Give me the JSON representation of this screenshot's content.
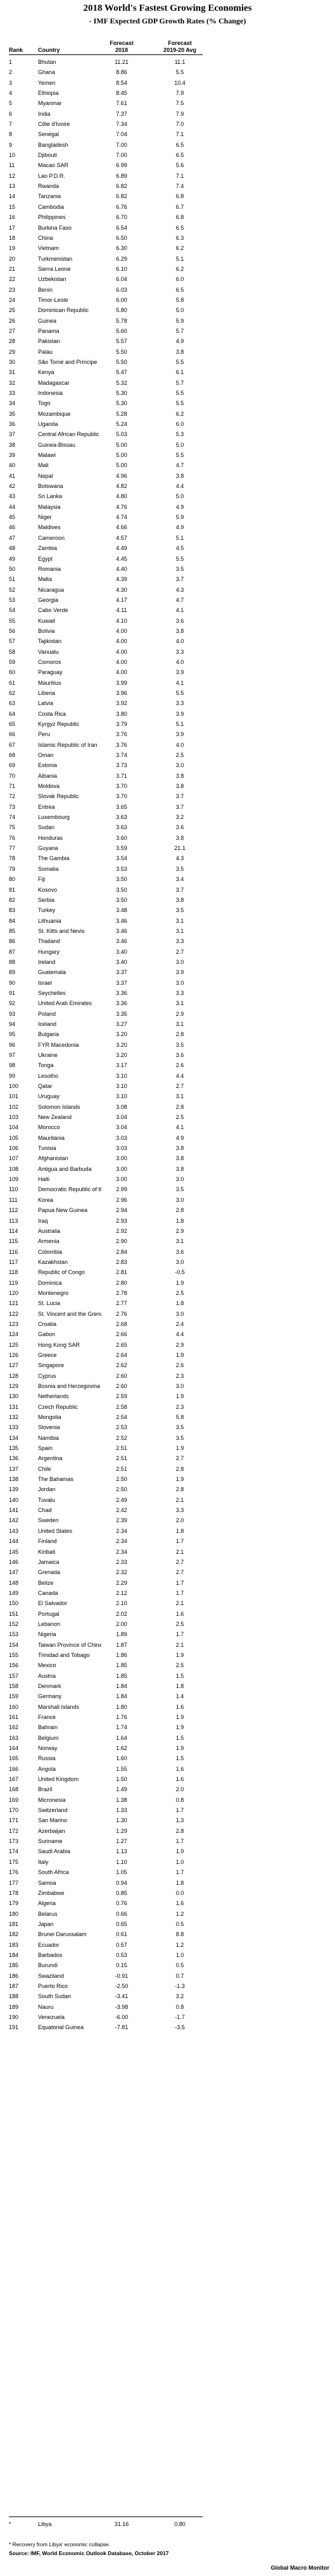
{
  "title": "2018 World's Fastest Growing Economies",
  "subtitle": "- IMF Expected GDP Growth Rates (% Change)",
  "headers": {
    "rank": "Rank",
    "country": "Country",
    "forecast_2018": "Forecast\n2018",
    "forecast_2019_20": "Forecast\n2019-20 Avg"
  },
  "rows": [
    [
      "1",
      "Bhutan",
      "11.21",
      "11.1"
    ],
    [
      "2",
      "Ghana",
      "8.86",
      "5.5"
    ],
    [
      "3",
      "Yemen",
      "8.54",
      "10.4"
    ],
    [
      "4",
      "Ethiopia",
      "8.45",
      "7.9"
    ],
    [
      "5",
      "Myanmar",
      "7.61",
      "7.5"
    ],
    [
      "6",
      "India",
      "7.37",
      "7.9"
    ],
    [
      "7",
      "Côte d'Ivoire",
      "7.34",
      "7.0"
    ],
    [
      "8",
      "Senegal",
      "7.04",
      "7.1"
    ],
    [
      "9",
      "Bangladesh",
      "7.00",
      "6.5"
    ],
    [
      "10",
      "Djibouti",
      "7.00",
      "6.5"
    ],
    [
      "11",
      "Macao SAR",
      "6.99",
      "5.6"
    ],
    [
      "12",
      "Lao P.D.R.",
      "6.89",
      "7.1"
    ],
    [
      "13",
      "Rwanda",
      "6.82",
      "7.4"
    ],
    [
      "14",
      "Tanzania",
      "6.82",
      "6.8"
    ],
    [
      "15",
      "Cambodia",
      "6.76",
      "6.7"
    ],
    [
      "16",
      "Philippines",
      "6.70",
      "6.8"
    ],
    [
      "17",
      "Burkina Faso",
      "6.54",
      "6.5"
    ],
    [
      "18",
      "China",
      "6.50",
      "6.3"
    ],
    [
      "19",
      "Vietnam",
      "6.30",
      "6.2"
    ],
    [
      "20",
      "Turkmenistan",
      "6.29",
      "5.1"
    ],
    [
      "21",
      "Sierra Leone",
      "6.10",
      "6.2"
    ],
    [
      "22",
      "Uzbekistan",
      "6.04",
      "6.0"
    ],
    [
      "23",
      "Benin",
      "6.03",
      "6.5"
    ],
    [
      "24",
      "Timor-Leste",
      "6.00",
      "5.8"
    ],
    [
      "25",
      "Dominican Republic",
      "5.80",
      "5.0"
    ],
    [
      "26",
      "Guinea",
      "5.78",
      "5.9"
    ],
    [
      "27",
      "Panama",
      "5.60",
      "5.7"
    ],
    [
      "28",
      "Pakistan",
      "5.57",
      "4.9"
    ],
    [
      "29",
      "Palau",
      "5.50",
      "3.8"
    ],
    [
      "30",
      "São Tomé and Príncipe",
      "5.50",
      "5.5"
    ],
    [
      "31",
      "Kenya",
      "5.47",
      "6.1"
    ],
    [
      "32",
      "Madagascar",
      "5.32",
      "5.7"
    ],
    [
      "33",
      "Indonesia",
      "5.30",
      "5.5"
    ],
    [
      "34",
      "Togo",
      "5.30",
      "5.5"
    ],
    [
      "35",
      "Mozambique",
      "5.28",
      "6.2"
    ],
    [
      "36",
      "Uganda",
      "5.24",
      "6.0"
    ],
    [
      "37",
      "Central African Republic",
      "5.03",
      "5.3"
    ],
    [
      "38",
      "Guinea-Bissau",
      "5.00",
      "5.0"
    ],
    [
      "39",
      "Malawi",
      "5.00",
      "5.5"
    ],
    [
      "40",
      "Mali",
      "5.00",
      "4.7"
    ],
    [
      "41",
      "Nepal",
      "4.96",
      "3.8"
    ],
    [
      "42",
      "Botswana",
      "4.82",
      "4.4"
    ],
    [
      "43",
      "Sri Lanka",
      "4.80",
      "5.0"
    ],
    [
      "44",
      "Malaysia",
      "4.76",
      "4.9"
    ],
    [
      "45",
      "Niger",
      "4.74",
      "5.9"
    ],
    [
      "46",
      "Maldives",
      "4.66",
      "4.9"
    ],
    [
      "47",
      "Cameroon",
      "4.57",
      "5.1"
    ],
    [
      "48",
      "Zambia",
      "4.49",
      "4.5"
    ],
    [
      "49",
      "Egypt",
      "4.45",
      "5.5"
    ],
    [
      "50",
      "Romania",
      "4.40",
      "3.5"
    ],
    [
      "51",
      "Malta",
      "4.39",
      "3.7"
    ],
    [
      "52",
      "Nicaragua",
      "4.30",
      "4.3"
    ],
    [
      "53",
      "Georgia",
      "4.17",
      "4.7"
    ],
    [
      "54",
      "Cabo Verde",
      "4.11",
      "4.1"
    ],
    [
      "55",
      "Kuwait",
      "4.10",
      "3.6"
    ],
    [
      "56",
      "Bolivia",
      "4.00",
      "3.8"
    ],
    [
      "57",
      "Tajikistan",
      "4.00",
      "4.0"
    ],
    [
      "58",
      "Vanuatu",
      "4.00",
      "3.3"
    ],
    [
      "59",
      "Comoros",
      "4.00",
      "4.0"
    ],
    [
      "60",
      "Paraguay",
      "4.00",
      "3.9"
    ],
    [
      "61",
      "Mauritius",
      "3.99",
      "4.1"
    ],
    [
      "62",
      "Liberia",
      "3.96",
      "5.5"
    ],
    [
      "63",
      "Latvia",
      "3.92",
      "3.3"
    ],
    [
      "64",
      "Costa Rica",
      "3.80",
      "3.9"
    ],
    [
      "65",
      "Kyrgyz Republic",
      "3.79",
      "5.1"
    ],
    [
      "66",
      "Peru",
      "3.76",
      "3.9"
    ],
    [
      "67",
      "Islamic Republic of Iran",
      "3.76",
      "4.0"
    ],
    [
      "68",
      "Oman",
      "3.74",
      "2.5"
    ],
    [
      "69",
      "Estonia",
      "3.73",
      "3.0"
    ],
    [
      "70",
      "Albania",
      "3.71",
      "3.8"
    ],
    [
      "71",
      "Moldova",
      "3.70",
      "3.8"
    ],
    [
      "72",
      "Slovak Republic",
      "3.70",
      "3.7"
    ],
    [
      "73",
      "Eritrea",
      "3.65",
      "3.7"
    ],
    [
      "74",
      "Luxembourg",
      "3.63",
      "3.2"
    ],
    [
      "75",
      "Sudan",
      "3.63",
      "3.6"
    ],
    [
      "76",
      "Honduras",
      "3.60",
      "3.8"
    ],
    [
      "77",
      "Guyana",
      "3.59",
      "21.1"
    ],
    [
      "78",
      "The Gambia",
      "3.54",
      "4.3"
    ],
    [
      "79",
      "Somalia",
      "3.53",
      "3.5"
    ],
    [
      "80",
      "Fiji",
      "3.50",
      "3.4"
    ],
    [
      "81",
      "Kosovo",
      "3.50",
      "3.7"
    ],
    [
      "82",
      "Serbia",
      "3.50",
      "3.8"
    ],
    [
      "83",
      "Turkey",
      "3.48",
      "3.5"
    ],
    [
      "84",
      "Lithuania",
      "3.46",
      "3.1"
    ],
    [
      "85",
      "St. Kitts and Nevis",
      "3.46",
      "3.1"
    ],
    [
      "86",
      "Thailand",
      "3.46",
      "3.3"
    ],
    [
      "87",
      "Hungary",
      "3.40",
      "2.7"
    ],
    [
      "88",
      "Ireland",
      "3.40",
      "3.0"
    ],
    [
      "89",
      "Guatemala",
      "3.37",
      "3.9"
    ],
    [
      "90",
      "Israel",
      "3.37",
      "3.0"
    ],
    [
      "91",
      "Seychelles",
      "3.36",
      "3.3"
    ],
    [
      "92",
      "United Arab Emirates",
      "3.36",
      "3.1"
    ],
    [
      "93",
      "Poland",
      "3.35",
      "2.9"
    ],
    [
      "94",
      "Iceland",
      "3.27",
      "3.1"
    ],
    [
      "95",
      "Bulgaria",
      "3.20",
      "2.8"
    ],
    [
      "96",
      "FYR Macedonia",
      "3.20",
      "3.5"
    ],
    [
      "97",
      "Ukraine",
      "3.20",
      "3.6"
    ],
    [
      "98",
      "Tonga",
      "3.17",
      "2.6"
    ],
    [
      "99",
      "Lesotho",
      "3.10",
      "4.4"
    ],
    [
      "100",
      "Qatar",
      "3.10",
      "2.7"
    ],
    [
      "101",
      "Uruguay",
      "3.10",
      "3.1"
    ],
    [
      "102",
      "Solomon Islands",
      "3.08",
      "2.8"
    ],
    [
      "103",
      "New Zealand",
      "3.04",
      "2.5"
    ],
    [
      "104",
      "Morocco",
      "3.04",
      "4.1"
    ],
    [
      "105",
      "Mauritania",
      "3.03",
      "4.9"
    ],
    [
      "106",
      "Tunisia",
      "3.03",
      "3.8"
    ],
    [
      "107",
      "Afghanistan",
      "3.00",
      "3.8"
    ],
    [
      "108",
      "Antigua and Barbuda",
      "3.00",
      "3.8"
    ],
    [
      "109",
      "Haiti",
      "3.00",
      "3.0"
    ],
    [
      "110",
      "Democratic Republic of the Congo",
      "2.99",
      "3.5"
    ],
    [
      "111",
      "Korea",
      "2.96",
      "3.0"
    ],
    [
      "112",
      "Papua New Guinea",
      "2.94",
      "2.8"
    ],
    [
      "113",
      "Iraq",
      "2.93",
      "1.8"
    ],
    [
      "114",
      "Australia",
      "2.92",
      "2.9"
    ],
    [
      "115",
      "Armenia",
      "2.90",
      "3.1"
    ],
    [
      "116",
      "Colombia",
      "2.84",
      "3.6"
    ],
    [
      "117",
      "Kazakhstan",
      "2.83",
      "3.0"
    ],
    [
      "118",
      "Republic of Congo",
      "2.81",
      "-0.5"
    ],
    [
      "119",
      "Dominica",
      "2.80",
      "1.9"
    ],
    [
      "120",
      "Montenegro",
      "2.78",
      "2.5"
    ],
    [
      "121",
      "St. Lucia",
      "2.77",
      "1.8"
    ],
    [
      "122",
      "St. Vincent and the Grenadines",
      "2.76",
      "3.0"
    ],
    [
      "123",
      "Croatia",
      "2.68",
      "2.4"
    ],
    [
      "124",
      "Gabon",
      "2.66",
      "4.4"
    ],
    [
      "125",
      "Hong Kong SAR",
      "2.65",
      "2.9"
    ],
    [
      "126",
      "Greece",
      "2.64",
      "1.9"
    ],
    [
      "127",
      "Singapore",
      "2.62",
      "2.6"
    ],
    [
      "128",
      "Cyprus",
      "2.60",
      "2.3"
    ],
    [
      "129",
      "Bosnia and Herzegovina",
      "2.60",
      "3.0"
    ],
    [
      "130",
      "Netherlands",
      "2.59",
      "1.9"
    ],
    [
      "131",
      "Czech Republic",
      "2.58",
      "2.3"
    ],
    [
      "132",
      "Mongolia",
      "2.54",
      "5.8"
    ],
    [
      "133",
      "Slovenia",
      "2.53",
      "3.5"
    ],
    [
      "134",
      "Namibia",
      "2.52",
      "3.5"
    ],
    [
      "135",
      "Spain",
      "2.51",
      "1.9"
    ],
    [
      "136",
      "Argentina",
      "2.51",
      "2.7"
    ],
    [
      "137",
      "Chile",
      "2.51",
      "2.8"
    ],
    [
      "138",
      "The Bahamas",
      "2.50",
      "1.9"
    ],
    [
      "139",
      "Jordan",
      "2.50",
      "2.8"
    ],
    [
      "140",
      "Tuvalu",
      "2.49",
      "2.1"
    ],
    [
      "141",
      "Chad",
      "2.42",
      "3.3"
    ],
    [
      "142",
      "Sweden",
      "2.39",
      "2.0"
    ],
    [
      "143",
      "United States",
      "2.34",
      "1.8"
    ],
    [
      "144",
      "Finland",
      "2.34",
      "1.7"
    ],
    [
      "145",
      "Kiribati",
      "2.34",
      "2.1"
    ],
    [
      "146",
      "Jamaica",
      "2.33",
      "2.7"
    ],
    [
      "147",
      "Grenada",
      "2.32",
      "2.7"
    ],
    [
      "148",
      "Belize",
      "2.29",
      "1.7"
    ],
    [
      "149",
      "Canada",
      "2.12",
      "1.7"
    ],
    [
      "150",
      "El Salvador",
      "2.10",
      "2.1"
    ],
    [
      "151",
      "Portugal",
      "2.02",
      "1.6"
    ],
    [
      "152",
      "Lebanon",
      "2.00",
      "2.5"
    ],
    [
      "153",
      "Nigeria",
      "1.89",
      "1.7"
    ],
    [
      "154",
      "Taiwan Province of China",
      "1.87",
      "2.1"
    ],
    [
      "155",
      "Trinidad and Tobago",
      "1.86",
      "1.9"
    ],
    [
      "156",
      "Mexico",
      "1.85",
      "2.5"
    ],
    [
      "157",
      "Austria",
      "1.85",
      "1.5"
    ],
    [
      "158",
      "Denmark",
      "1.84",
      "1.8"
    ],
    [
      "159",
      "Germany",
      "1.84",
      "1.4"
    ],
    [
      "160",
      "Marshall Islands",
      "1.80",
      "1.6"
    ],
    [
      "161",
      "France",
      "1.76",
      "1.9"
    ],
    [
      "162",
      "Bahrain",
      "1.74",
      "1.9"
    ],
    [
      "163",
      "Belgium",
      "1.64",
      "1.5"
    ],
    [
      "164",
      "Norway",
      "1.62",
      "1.9"
    ],
    [
      "165",
      "Russia",
      "1.60",
      "1.5"
    ],
    [
      "166",
      "Angola",
      "1.55",
      "1.6"
    ],
    [
      "167",
      "United Kingdom",
      "1.50",
      "1.6"
    ],
    [
      "168",
      "Brazil",
      "1.49",
      "2.0"
    ],
    [
      "169",
      "Micronesia",
      "1.38",
      "0.8"
    ],
    [
      "170",
      "Switzerland",
      "1.33",
      "1.7"
    ],
    [
      "171",
      "San Marino",
      "1.30",
      "1.3"
    ],
    [
      "172",
      "Azerbaijan",
      "1.29",
      "2.8"
    ],
    [
      "173",
      "Suriname",
      "1.27",
      "1.7"
    ],
    [
      "174",
      "Saudi Arabia",
      "1.13",
      "1.9"
    ],
    [
      "175",
      "Italy",
      "1.10",
      "1.0"
    ],
    [
      "176",
      "South Africa",
      "1.05",
      "1.7"
    ],
    [
      "177",
      "Samoa",
      "0.94",
      "1.8"
    ],
    [
      "178",
      "Zimbabwe",
      "0.85",
      "0.0"
    ],
    [
      "179",
      "Algeria",
      "0.76",
      "1.6"
    ],
    [
      "180",
      "Belarus",
      "0.66",
      "1.2"
    ],
    [
      "181",
      "Japan",
      "0.65",
      "0.5"
    ],
    [
      "182",
      "Brunei Darussalam",
      "0.61",
      "8.8"
    ],
    [
      "183",
      "Ecuador",
      "0.57",
      "1.2"
    ],
    [
      "184",
      "Barbados",
      "0.53",
      "1.0"
    ],
    [
      "185",
      "Burundi",
      "0.15",
      "0.5"
    ],
    [
      "186",
      "Swaziland",
      "-0.91",
      "0.7"
    ],
    [
      "187",
      "Puerto Rico",
      "-2.50",
      "-1.3"
    ],
    [
      "188",
      "South Sudan",
      "-3.41",
      "3.2"
    ],
    [
      "189",
      "Nauru",
      "-3.98",
      "0.8"
    ],
    [
      "190",
      "Venezuela",
      "-6.00",
      "-1.7"
    ],
    [
      "191",
      "Equatorial Guinea",
      "-7.81",
      "-3.5"
    ]
  ],
  "footer_row": [
    "*",
    "Libya",
    "31.16",
    "0.80"
  ],
  "note": "* Recovery from Libya' economic collapse.",
  "source": "Source: IMF, World Economic Outlook Database, October 2017",
  "brand": "Global Macro Monitor"
}
